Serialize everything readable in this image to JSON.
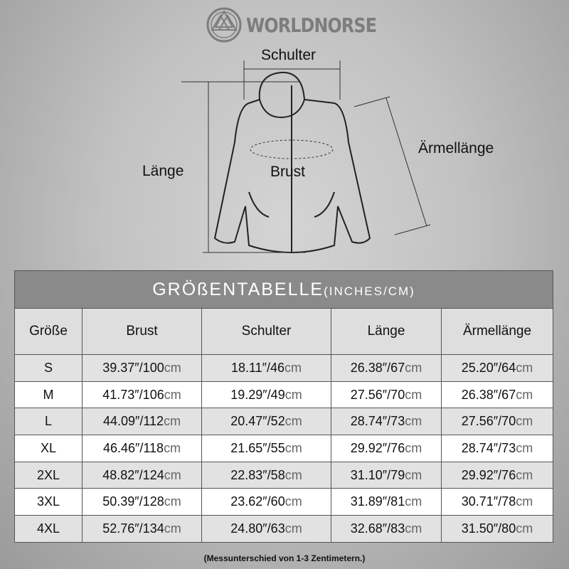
{
  "brand": "WORLDNORSE",
  "diagram": {
    "shoulder": "Schulter",
    "length": "Länge",
    "chest": "Brust",
    "sleeve": "Ärmellänge"
  },
  "table": {
    "title": "GRÖßENTABELLE",
    "title_unit": "(INCHES/CM)",
    "headers": [
      "Größe",
      "Brust",
      "Schulter",
      "Länge",
      "Ärmellänge"
    ],
    "rows": [
      [
        "S",
        "39.37″/100",
        "18.11″/46",
        "26.38″/67",
        "25.20″/64"
      ],
      [
        "M",
        "41.73″/106",
        "19.29″/49",
        "27.56″/70",
        "26.38″/67"
      ],
      [
        "L",
        "44.09″/112",
        "20.47″/52",
        "28.74″/73",
        "27.56″/70"
      ],
      [
        "XL",
        "46.46″/118",
        "21.65″/55",
        "29.92″/76",
        "28.74″/73"
      ],
      [
        "2XL",
        "48.82″/124",
        "22.83″/58",
        "31.10″/79",
        "29.92″/76"
      ],
      [
        "3XL",
        "50.39″/128",
        "23.62″/60",
        "31.89″/81",
        "30.71″/78"
      ],
      [
        "4XL",
        "52.76″/134",
        "24.80″/63",
        "32.68″/83",
        "31.50″/80"
      ]
    ],
    "unit": "cm"
  },
  "note": "(Messunterschied von 1-3 Zentimetern.)"
}
